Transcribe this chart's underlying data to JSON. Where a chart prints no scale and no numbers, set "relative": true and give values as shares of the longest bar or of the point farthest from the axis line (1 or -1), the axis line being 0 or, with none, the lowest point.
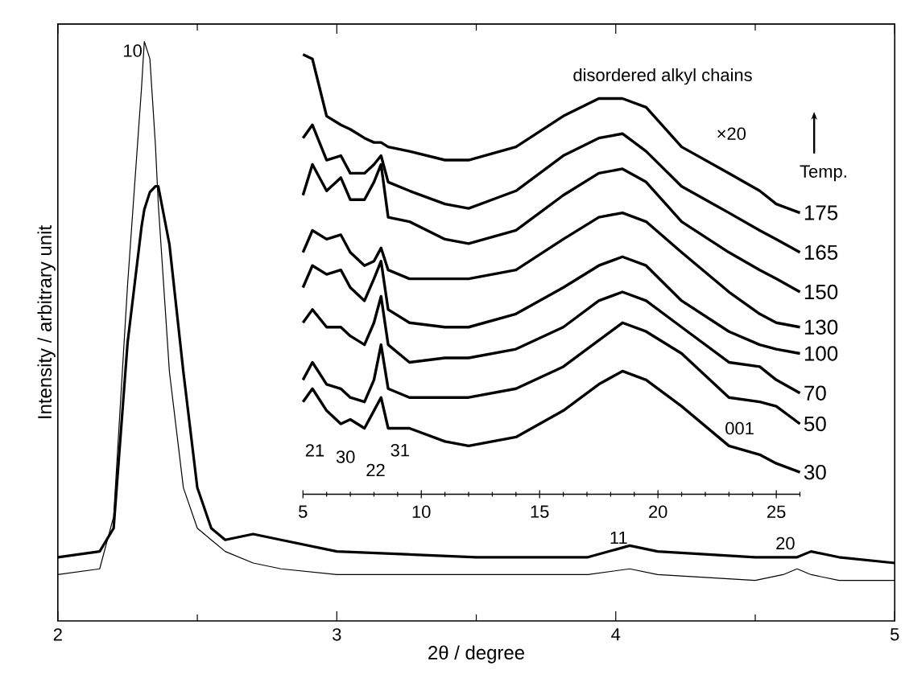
{
  "chart_data": [
    {
      "type": "line",
      "relative": true,
      "xlabel": "2θ / degree",
      "ylabel": "Intensity / arbitrary unit",
      "x": [
        2,
        2.15,
        2.2,
        2.25,
        2.3,
        2.31,
        2.33,
        2.35,
        2.36,
        2.4,
        2.45,
        2.5,
        2.55,
        2.6,
        2.7,
        2.8,
        3,
        3.5,
        3.9,
        4.05,
        4.15,
        4.5,
        4.6,
        4.65,
        4.7,
        4.8,
        5
      ],
      "series": [
        {
          "color": "#000000",
          "values": [
            0.08,
            0.09,
            0.18,
            0.58,
            0.92,
            1.0,
            0.97,
            0.82,
            0.72,
            0.43,
            0.23,
            0.16,
            0.14,
            0.12,
            0.1,
            0.09,
            0.08,
            0.08,
            0.08,
            0.09,
            0.08,
            0.07,
            0.08,
            0.09,
            0.08,
            0.07,
            0.07
          ]
        },
        {
          "color": "#000000",
          "values": [
            0.11,
            0.12,
            0.16,
            0.48,
            0.68,
            0.71,
            0.74,
            0.75,
            0.75,
            0.65,
            0.43,
            0.23,
            0.16,
            0.14,
            0.15,
            0.14,
            0.12,
            0.11,
            0.11,
            0.13,
            0.12,
            0.11,
            0.11,
            0.11,
            0.12,
            0.11,
            0.1
          ]
        }
      ],
      "xlim": [
        2,
        5
      ],
      "xticks": [
        2,
        {
          "value": 2.5,
          "label": null
        },
        3,
        {
          "value": 3.5,
          "label": null
        },
        4,
        {
          "value": 4.5,
          "label": null
        },
        5
      ],
      "annotations": [
        {
          "text": "10",
          "x": 2.31,
          "y": 0.97
        },
        {
          "text": "11",
          "x": 4.05,
          "y": 0.13
        },
        {
          "text": "20",
          "x": 4.65,
          "y": 0.12
        }
      ]
    },
    {
      "type": "line",
      "relative": true,
      "x": [
        5,
        5.4,
        6,
        6.6,
        7,
        7.6,
        8,
        8.3,
        8.6,
        9.5,
        11,
        12,
        14,
        16,
        17.5,
        18.5,
        19.5,
        21,
        23,
        24.3,
        25,
        26
      ],
      "series": [
        {
          "name": "175",
          "color": "#000000",
          "values": [
            1.0,
            0.99,
            0.86,
            0.84,
            0.83,
            0.81,
            0.8,
            0.8,
            0.79,
            0.78,
            0.76,
            0.76,
            0.79,
            0.86,
            0.9,
            0.9,
            0.88,
            0.79,
            0.73,
            0.69,
            0.66,
            0.64
          ]
        },
        {
          "name": "165",
          "color": "#000000",
          "values": [
            0.81,
            0.84,
            0.76,
            0.77,
            0.73,
            0.73,
            0.75,
            0.77,
            0.71,
            0.69,
            0.66,
            0.65,
            0.69,
            0.77,
            0.81,
            0.82,
            0.78,
            0.7,
            0.64,
            0.6,
            0.58,
            0.55
          ]
        },
        {
          "name": "150",
          "color": "#000000",
          "values": [
            0.68,
            0.75,
            0.69,
            0.72,
            0.67,
            0.67,
            0.71,
            0.75,
            0.63,
            0.62,
            0.58,
            0.57,
            0.6,
            0.68,
            0.73,
            0.74,
            0.71,
            0.62,
            0.55,
            0.51,
            0.49,
            0.46
          ]
        },
        {
          "name": "130",
          "color": "#000000",
          "values": [
            0.55,
            0.6,
            0.58,
            0.59,
            0.55,
            0.52,
            0.53,
            0.56,
            0.51,
            0.49,
            0.49,
            0.49,
            0.51,
            0.58,
            0.63,
            0.64,
            0.62,
            0.55,
            0.46,
            0.41,
            0.39,
            0.38
          ]
        },
        {
          "name": "100",
          "color": "#000000",
          "values": [
            0.47,
            0.52,
            0.5,
            0.51,
            0.47,
            0.44,
            0.49,
            0.53,
            0.42,
            0.39,
            0.38,
            0.38,
            0.41,
            0.47,
            0.52,
            0.54,
            0.52,
            0.44,
            0.37,
            0.34,
            0.33,
            0.32
          ]
        },
        {
          "name": "70",
          "color": "#000000",
          "values": [
            0.39,
            0.42,
            0.38,
            0.38,
            0.36,
            0.34,
            0.39,
            0.45,
            0.34,
            0.3,
            0.31,
            0.31,
            0.33,
            0.38,
            0.44,
            0.46,
            0.44,
            0.38,
            0.3,
            0.29,
            0.26,
            0.23
          ]
        },
        {
          "name": "50",
          "color": "#000000",
          "values": [
            0.26,
            0.3,
            0.25,
            0.24,
            0.22,
            0.21,
            0.26,
            0.34,
            0.24,
            0.22,
            0.22,
            0.22,
            0.24,
            0.29,
            0.35,
            0.39,
            0.37,
            0.32,
            0.22,
            0.21,
            0.2,
            0.16
          ]
        },
        {
          "name": "30",
          "color": "#000000",
          "values": [
            0.21,
            0.24,
            0.19,
            0.16,
            0.17,
            0.15,
            0.19,
            0.22,
            0.15,
            0.15,
            0.12,
            0.11,
            0.13,
            0.19,
            0.25,
            0.28,
            0.26,
            0.2,
            0.11,
            0.09,
            0.07,
            0.05
          ]
        }
      ],
      "xlim": [
        5,
        26
      ],
      "xticks": [
        5,
        {
          "value": 6,
          "label": null
        },
        {
          "value": 7,
          "label": null
        },
        {
          "value": 8,
          "label": null
        },
        {
          "value": 9,
          "label": null
        },
        10,
        {
          "value": 11,
          "label": null
        },
        {
          "value": 12,
          "label": null
        },
        {
          "value": 13,
          "label": null
        },
        {
          "value": 14,
          "label": null
        },
        15,
        {
          "value": 16,
          "label": null
        },
        {
          "value": 17,
          "label": null
        },
        {
          "value": 18,
          "label": null
        },
        {
          "value": 19,
          "label": null
        },
        20,
        {
          "value": 21,
          "label": null
        },
        {
          "value": 22,
          "label": null
        },
        {
          "value": 23,
          "label": null
        },
        {
          "value": 24,
          "label": null
        },
        25,
        {
          "value": 26,
          "label": null
        }
      ],
      "annotations": [
        "disordered alkyl chains",
        "×20",
        "Temp.",
        "001",
        "21",
        "30",
        "22",
        "31"
      ]
    }
  ]
}
